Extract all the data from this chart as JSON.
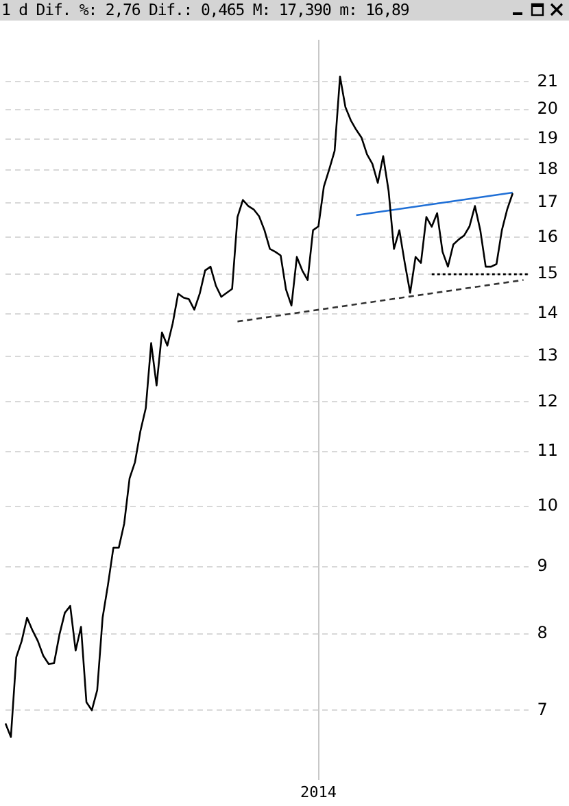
{
  "chart_data": {
    "type": "line",
    "title": "1 d Dif. %: 2,76 Dif.: 0,465 M: 17,390 m: 16,89",
    "categories": [
      null,
      null,
      null,
      null,
      null,
      null,
      null,
      null,
      null,
      null,
      null,
      null,
      null,
      null,
      null,
      null,
      null,
      null,
      null,
      null,
      null,
      null,
      null,
      null,
      null,
      null,
      null,
      null,
      null,
      null,
      null,
      null,
      null,
      null,
      null,
      null,
      null,
      null,
      null,
      null,
      null,
      null,
      null,
      null,
      null,
      null,
      null,
      null,
      null,
      null,
      null,
      null,
      null,
      null,
      null,
      null,
      null,
      null,
      "2014",
      null,
      null,
      null,
      null,
      null,
      null,
      null,
      null,
      null,
      null,
      null,
      null,
      null,
      null,
      null,
      null,
      null,
      null,
      null,
      null,
      null,
      null,
      null,
      null,
      null,
      null,
      null,
      null,
      null,
      null,
      null,
      null,
      null,
      null,
      null,
      null,
      null,
      null,
      null
    ],
    "ylim": [
      6.2,
      22.6
    ],
    "log": "y",
    "grid": true,
    "legend": false,
    "marker": "none",
    "yticks": [
      7,
      8,
      9,
      10,
      11,
      12,
      13,
      14,
      15,
      16,
      17,
      18,
      19,
      20,
      21
    ],
    "series": [
      {
        "color": "#000000",
        "line_style": "solid",
        "values": [
          6.84,
          6.68,
          7.68,
          7.9,
          8.23,
          8.05,
          7.9,
          7.7,
          7.59,
          7.6,
          7.99,
          8.3,
          8.4,
          7.77,
          8.1,
          7.1,
          7.0,
          7.25,
          8.23,
          8.72,
          9.3,
          9.3,
          9.7,
          10.5,
          10.8,
          11.4,
          11.87,
          13.3,
          12.35,
          13.55,
          13.24,
          13.77,
          14.5,
          14.4,
          14.36,
          14.1,
          14.5,
          15.1,
          15.2,
          14.7,
          14.42,
          14.52,
          14.62,
          16.58,
          17.08,
          16.9,
          16.8,
          16.6,
          16.2,
          15.68,
          15.6,
          15.5,
          14.6,
          14.2,
          15.46,
          15.1,
          14.85,
          16.2,
          16.31,
          17.48,
          18.02,
          18.61,
          21.19,
          20.09,
          19.63,
          19.31,
          19.04,
          18.5,
          18.19,
          17.6,
          18.44,
          17.36,
          15.68,
          16.2,
          15.3,
          14.52,
          15.46,
          15.3,
          16.58,
          16.3,
          16.69,
          15.6,
          15.2,
          15.8,
          15.94,
          16.05,
          16.31,
          16.9,
          16.2,
          15.2,
          15.2,
          15.27,
          16.2,
          16.81,
          17.28,
          null,
          null,
          null
        ]
      },
      {
        "color": "#1f6fd6",
        "line_style": "solid",
        "values": [
          null,
          null,
          null,
          null,
          null,
          null,
          null,
          null,
          null,
          null,
          null,
          null,
          null,
          null,
          null,
          null,
          null,
          null,
          null,
          null,
          null,
          null,
          null,
          null,
          null,
          null,
          null,
          null,
          null,
          null,
          null,
          null,
          null,
          null,
          null,
          null,
          null,
          null,
          null,
          null,
          null,
          null,
          null,
          null,
          null,
          null,
          null,
          null,
          null,
          null,
          null,
          null,
          null,
          null,
          null,
          null,
          null,
          null,
          null,
          null,
          null,
          null,
          null,
          null,
          null,
          16.63,
          null,
          null,
          null,
          null,
          null,
          null,
          null,
          null,
          null,
          null,
          null,
          null,
          null,
          null,
          null,
          null,
          null,
          null,
          null,
          null,
          null,
          null,
          null,
          null,
          null,
          null,
          null,
          null,
          17.3,
          null,
          null,
          null
        ]
      },
      {
        "color": "#333333",
        "line_style": "dashed",
        "values": [
          null,
          null,
          null,
          null,
          null,
          null,
          null,
          null,
          null,
          null,
          null,
          null,
          null,
          null,
          null,
          null,
          null,
          null,
          null,
          null,
          null,
          null,
          null,
          null,
          null,
          null,
          null,
          null,
          null,
          null,
          null,
          null,
          null,
          null,
          null,
          null,
          null,
          null,
          null,
          null,
          null,
          null,
          null,
          13.81,
          null,
          null,
          null,
          null,
          null,
          null,
          null,
          null,
          null,
          null,
          null,
          null,
          null,
          null,
          null,
          null,
          null,
          null,
          null,
          null,
          null,
          null,
          null,
          null,
          null,
          null,
          null,
          null,
          null,
          null,
          null,
          null,
          null,
          null,
          null,
          null,
          null,
          null,
          null,
          null,
          null,
          null,
          null,
          null,
          null,
          null,
          null,
          null,
          null,
          null,
          null,
          null,
          14.85,
          null
        ]
      },
      {
        "color": "#000000",
        "line_style": "dotted",
        "values": [
          null,
          null,
          null,
          null,
          null,
          null,
          null,
          null,
          null,
          null,
          null,
          null,
          null,
          null,
          null,
          null,
          null,
          null,
          null,
          null,
          null,
          null,
          null,
          null,
          null,
          null,
          null,
          null,
          null,
          null,
          null,
          null,
          null,
          null,
          null,
          null,
          null,
          null,
          null,
          null,
          null,
          null,
          null,
          null,
          null,
          null,
          null,
          null,
          null,
          null,
          null,
          null,
          null,
          null,
          null,
          null,
          null,
          null,
          null,
          null,
          null,
          null,
          null,
          null,
          null,
          null,
          null,
          null,
          null,
          null,
          null,
          null,
          null,
          null,
          null,
          null,
          null,
          null,
          null,
          15,
          null,
          null,
          null,
          null,
          null,
          null,
          null,
          null,
          null,
          null,
          null,
          null,
          null,
          null,
          null,
          null,
          null,
          15
        ]
      }
    ]
  }
}
